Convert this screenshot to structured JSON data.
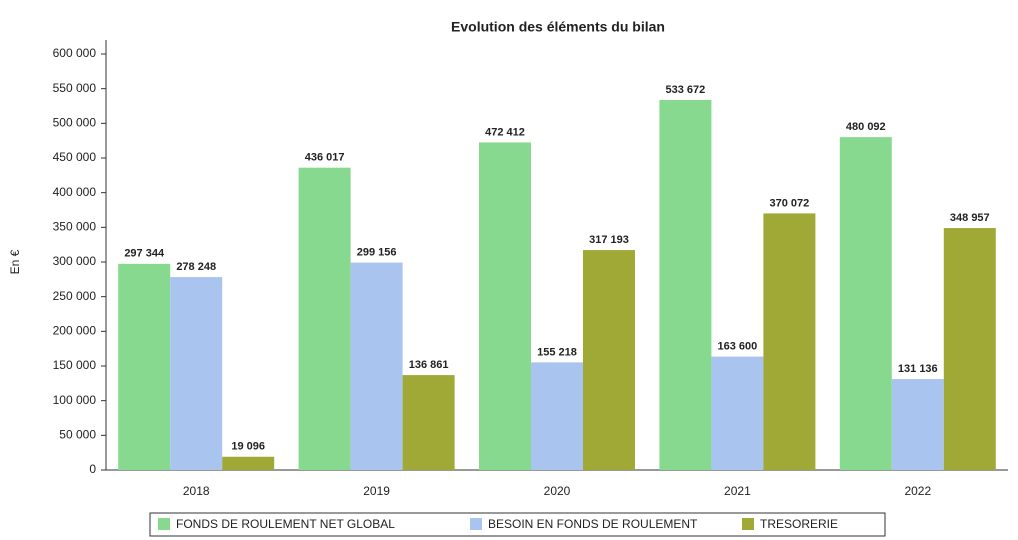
{
  "chart_data": {
    "type": "bar",
    "title": "Evolution des éléments du bilan",
    "y_label": "En €",
    "categories": [
      "2018",
      "2019",
      "2020",
      "2021",
      "2022"
    ],
    "series": [
      {
        "name": "FONDS DE ROULEMENT NET GLOBAL",
        "color": "#86d98f",
        "values": [
          297344,
          436017,
          472412,
          533672,
          480092
        ],
        "value_labels": [
          "297 344",
          "436 017",
          "472 412",
          "533 672",
          "480 092"
        ]
      },
      {
        "name": "BESOIN EN FONDS DE ROULEMENT",
        "color": "#a9c4ee",
        "values": [
          278248,
          299156,
          155218,
          163600,
          131136
        ],
        "value_labels": [
          "278 248",
          "299 156",
          "155 218",
          "163 600",
          "131 136"
        ]
      },
      {
        "name": "TRESORERIE",
        "color": "#a0a836",
        "values": [
          19096,
          136861,
          317193,
          370072,
          348957
        ],
        "value_labels": [
          "19 096",
          "136 861",
          "317 193",
          "370 072",
          "348 957"
        ]
      }
    ],
    "ylim": [
      0,
      600000
    ],
    "yticks": [
      0,
      {
        "value": 50000,
        "label": "50 000"
      },
      {
        "value": 100000,
        "label": "100 000"
      },
      {
        "value": 150000,
        "label": "150 000"
      },
      {
        "value": 200000,
        "label": "200 000"
      },
      {
        "value": 250000,
        "label": "250 000"
      },
      {
        "value": 300000,
        "label": "300 000"
      },
      {
        "value": 350000,
        "label": "350 000"
      },
      {
        "value": 400000,
        "label": "400 000"
      },
      {
        "value": 450000,
        "label": "450 000"
      },
      {
        "value": 500000,
        "label": "500 000"
      },
      {
        "value": 550000,
        "label": "550 000"
      },
      {
        "value": 600000,
        "label": "600 000"
      }
    ],
    "grid": false,
    "legend": "bottom"
  }
}
